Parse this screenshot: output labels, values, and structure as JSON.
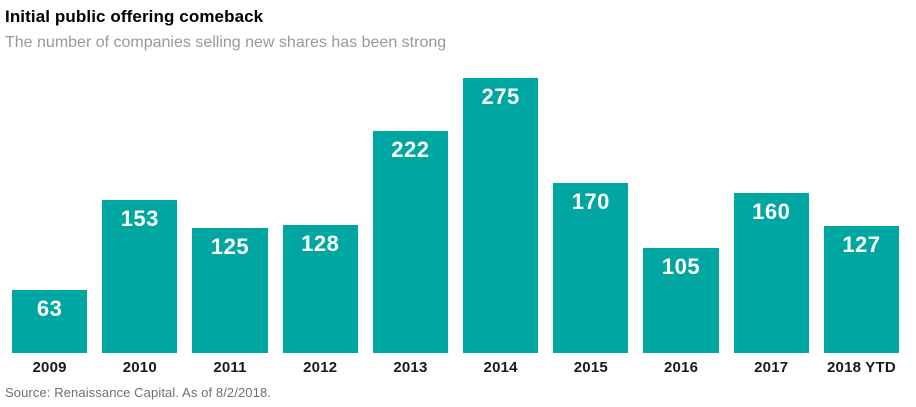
{
  "header": {
    "title": "Initial public offering comeback",
    "subtitle": "The number of companies selling new shares has been strong"
  },
  "footer": {
    "source": "Source: Renaissance Capital. As of 8/2/2018."
  },
  "chart_data": {
    "type": "bar",
    "categories": [
      "2009",
      "2010",
      "2011",
      "2012",
      "2013",
      "2014",
      "2015",
      "2016",
      "2017",
      "2018 YTD"
    ],
    "values": [
      63,
      153,
      125,
      128,
      222,
      275,
      170,
      105,
      160,
      127
    ],
    "title": "Initial public offering comeback",
    "subtitle": "The number of companies selling new shares has been strong",
    "xlabel": "",
    "ylabel": "",
    "ylim": [
      0,
      275
    ],
    "grid": false,
    "legend": "none",
    "value_label_position": "inside-top",
    "orientation": "vertical"
  },
  "colors": {
    "bar": "#00A6A2",
    "value_label": "#FFFFFF",
    "title": "#000000",
    "subtitle": "#999999",
    "axis_labels": "#1A1A1A",
    "source": "#6E7072",
    "background": "#FFFFFF"
  }
}
